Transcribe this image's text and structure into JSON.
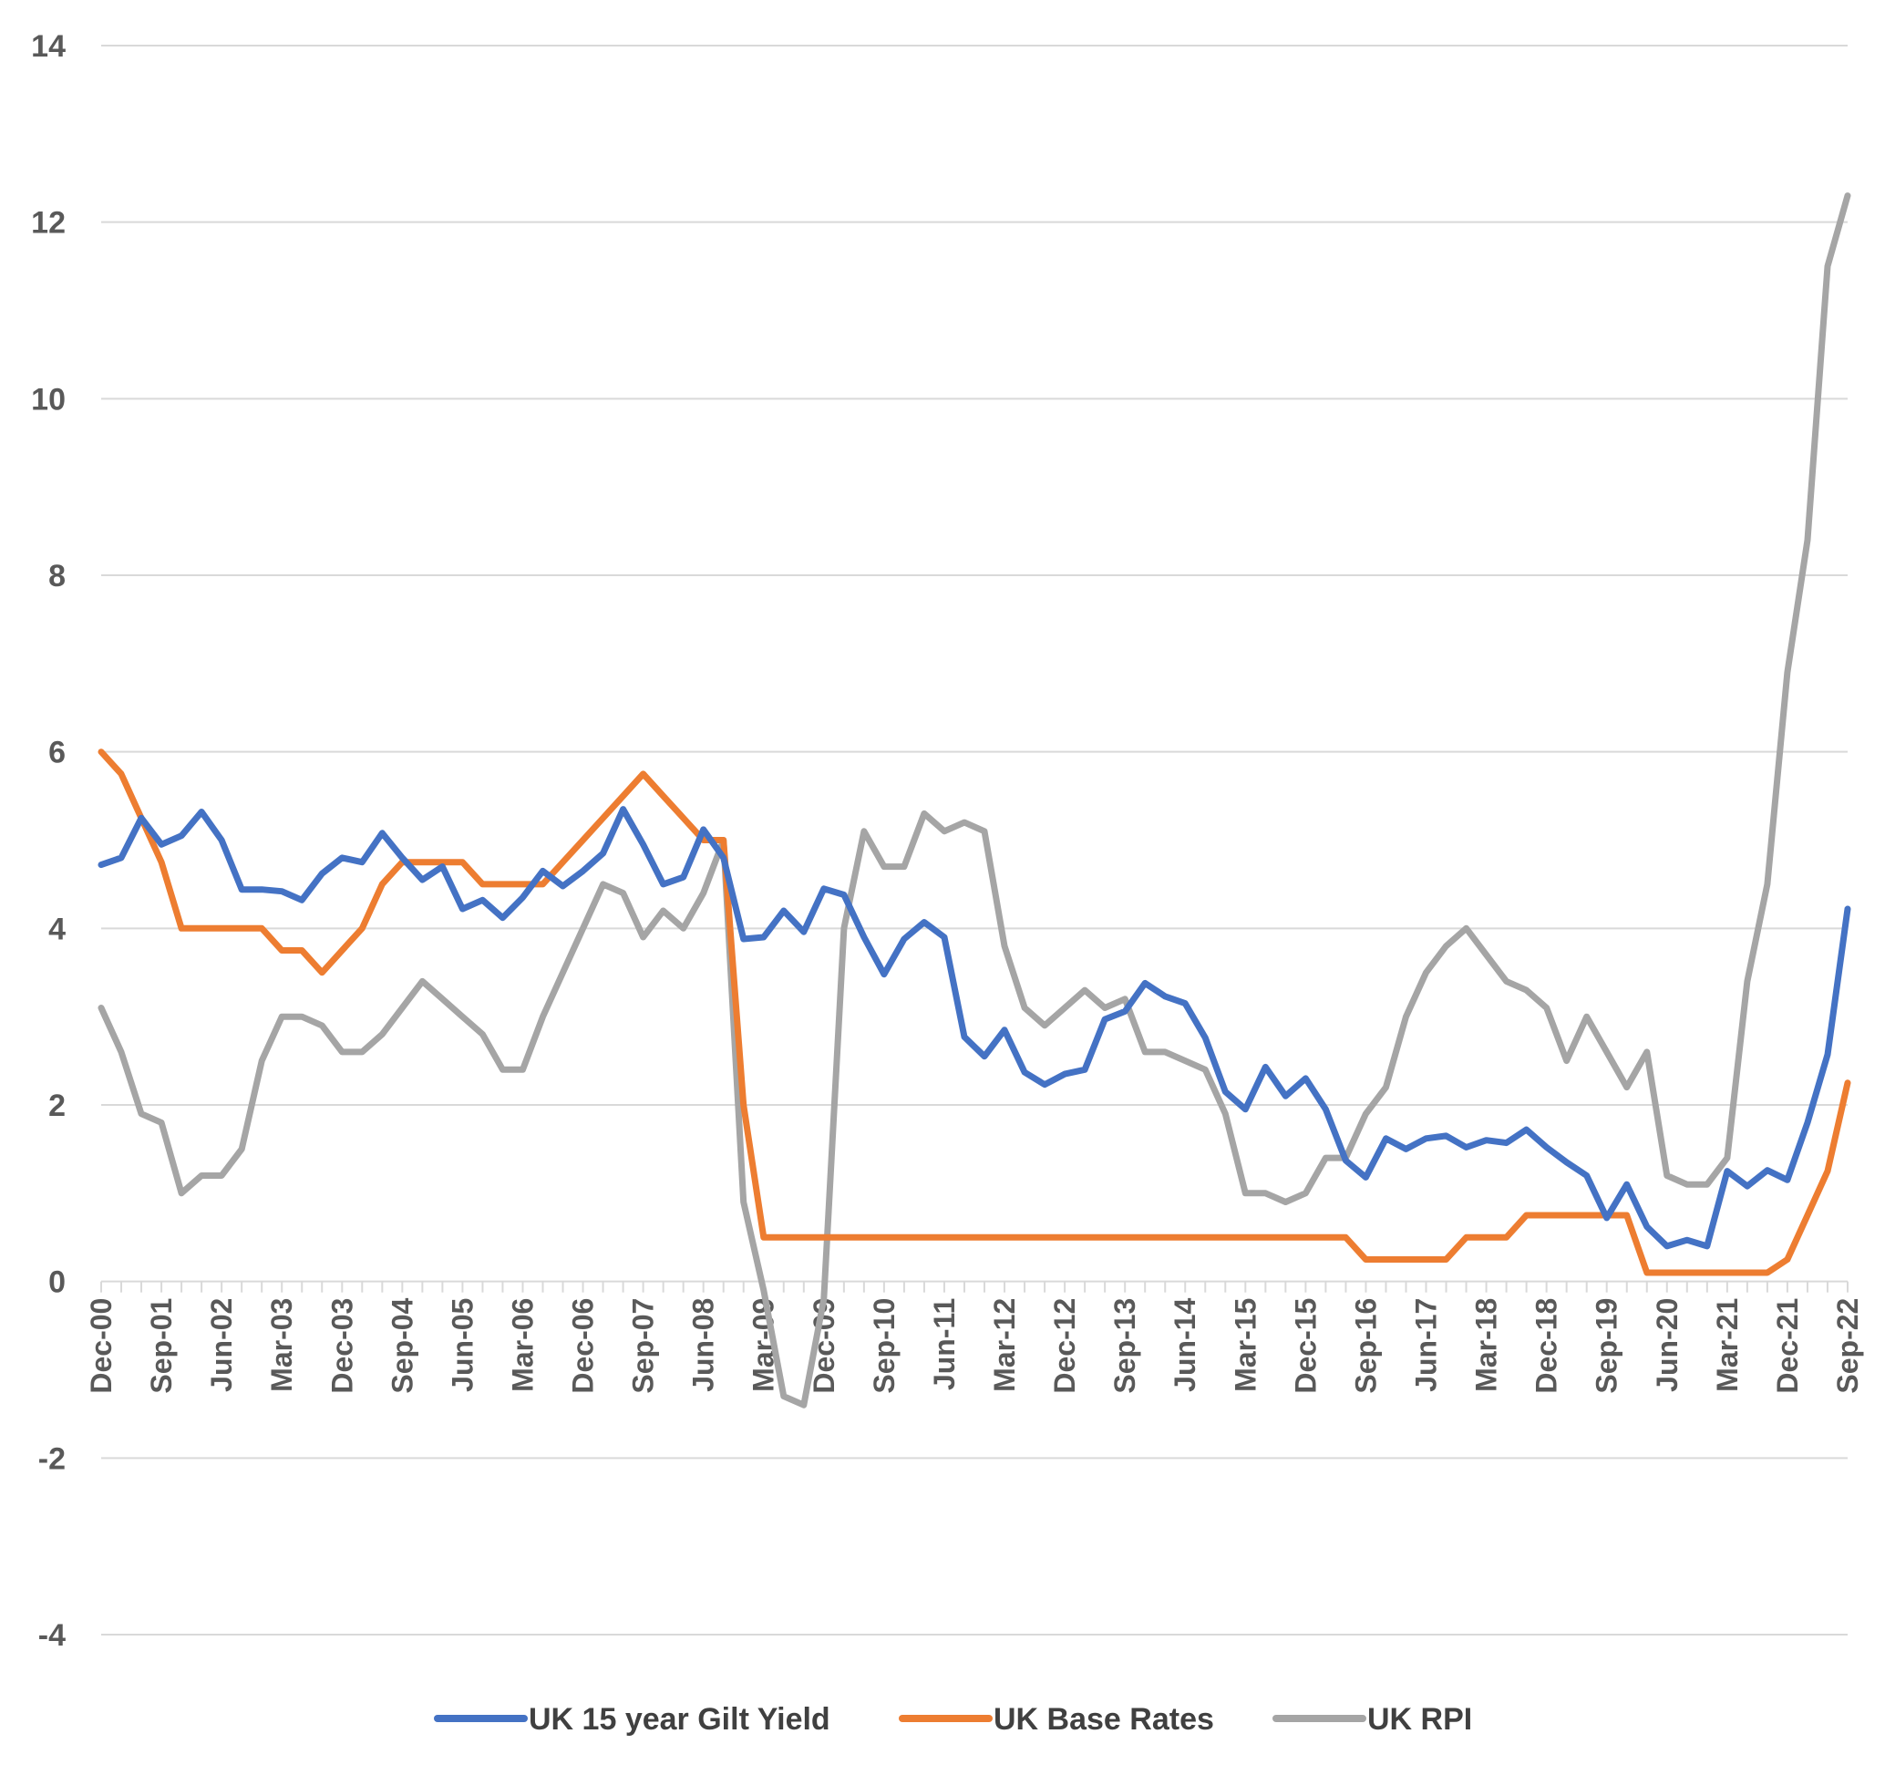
{
  "chart_data": {
    "type": "line",
    "title": "",
    "xlabel": "",
    "ylabel": "",
    "ylim": [
      -4,
      14
    ],
    "yticks": [
      -4,
      -2,
      0,
      2,
      4,
      6,
      8,
      10,
      12,
      14
    ],
    "grid": "horizontal",
    "legend_position": "bottom",
    "x_tick_labels": [
      "Dec-00",
      "Sep-01",
      "Jun-02",
      "Mar-03",
      "Dec-03",
      "Sep-04",
      "Jun-05",
      "Mar-06",
      "Dec-06",
      "Sep-07",
      "Jun-08",
      "Mar-09",
      "Dec-09",
      "Sep-10",
      "Jun-11",
      "Mar-12",
      "Dec-12",
      "Sep-13",
      "Jun-14",
      "Mar-15",
      "Dec-15",
      "Sep-16",
      "Jun-17",
      "Mar-18",
      "Dec-18",
      "Sep-19",
      "Jun-20",
      "Mar-21",
      "Dec-21",
      "Sep-22"
    ],
    "x_tick_step": 3,
    "x_points": [
      "Dec-00",
      "Mar-01",
      "Jun-01",
      "Sep-01",
      "Dec-01",
      "Mar-02",
      "Jun-02",
      "Sep-02",
      "Dec-02",
      "Mar-03",
      "Jun-03",
      "Sep-03",
      "Dec-03",
      "Mar-04",
      "Jun-04",
      "Sep-04",
      "Dec-04",
      "Mar-05",
      "Jun-05",
      "Sep-05",
      "Dec-05",
      "Mar-06",
      "Jun-06",
      "Sep-06",
      "Dec-06",
      "Mar-07",
      "Jun-07",
      "Sep-07",
      "Dec-07",
      "Mar-08",
      "Jun-08",
      "Sep-08",
      "Dec-08",
      "Mar-09",
      "Jun-09",
      "Sep-09",
      "Dec-09",
      "Mar-10",
      "Jun-10",
      "Sep-10",
      "Dec-10",
      "Mar-11",
      "Jun-11",
      "Sep-11",
      "Dec-11",
      "Mar-12",
      "Jun-12",
      "Sep-12",
      "Dec-12",
      "Mar-13",
      "Jun-13",
      "Sep-13",
      "Dec-13",
      "Mar-14",
      "Jun-14",
      "Sep-14",
      "Dec-14",
      "Mar-15",
      "Jun-15",
      "Sep-15",
      "Dec-15",
      "Mar-16",
      "Jun-16",
      "Sep-16",
      "Dec-16",
      "Mar-17",
      "Jun-17",
      "Sep-17",
      "Dec-17",
      "Mar-18",
      "Jun-18",
      "Sep-18",
      "Dec-18",
      "Mar-19",
      "Jun-19",
      "Sep-19",
      "Dec-19",
      "Mar-20",
      "Jun-20",
      "Sep-20",
      "Dec-20",
      "Mar-21",
      "Jun-21",
      "Sep-21",
      "Dec-21",
      "Mar-22",
      "Jun-22",
      "Sep-22"
    ],
    "series": [
      {
        "name": "UK 15 year Gilt Yield",
        "color": "#4472C4",
        "values": [
          4.72,
          4.8,
          5.25,
          4.95,
          5.05,
          5.32,
          5.0,
          4.44,
          4.44,
          4.42,
          4.32,
          4.62,
          4.8,
          4.75,
          5.08,
          4.8,
          4.55,
          4.7,
          4.22,
          4.32,
          4.12,
          4.35,
          4.65,
          4.48,
          4.65,
          4.85,
          5.35,
          4.95,
          4.5,
          4.58,
          5.12,
          4.8,
          3.88,
          3.9,
          4.2,
          3.96,
          4.45,
          4.38,
          3.9,
          3.48,
          3.88,
          4.07,
          3.9,
          2.77,
          2.55,
          2.85,
          2.37,
          2.23,
          2.35,
          2.4,
          2.97,
          3.06,
          3.38,
          3.23,
          3.15,
          2.76,
          2.15,
          1.95,
          2.43,
          2.1,
          2.3,
          1.95,
          1.37,
          1.18,
          1.62,
          1.5,
          1.62,
          1.65,
          1.52,
          1.6,
          1.57,
          1.72,
          1.52,
          1.35,
          1.2,
          0.72,
          1.1,
          0.62,
          0.4,
          0.47,
          0.4,
          1.25,
          1.08,
          1.26,
          1.15,
          1.8,
          2.57,
          4.22
        ]
      },
      {
        "name": "UK Base Rates",
        "color": "#ED7D31",
        "values": [
          6.0,
          5.75,
          5.25,
          4.75,
          4.0,
          4.0,
          4.0,
          4.0,
          4.0,
          3.75,
          3.75,
          3.5,
          3.75,
          4.0,
          4.5,
          4.75,
          4.75,
          4.75,
          4.75,
          4.5,
          4.5,
          4.5,
          4.5,
          4.75,
          5.0,
          5.25,
          5.5,
          5.75,
          5.5,
          5.25,
          5.0,
          5.0,
          2.0,
          0.5,
          0.5,
          0.5,
          0.5,
          0.5,
          0.5,
          0.5,
          0.5,
          0.5,
          0.5,
          0.5,
          0.5,
          0.5,
          0.5,
          0.5,
          0.5,
          0.5,
          0.5,
          0.5,
          0.5,
          0.5,
          0.5,
          0.5,
          0.5,
          0.5,
          0.5,
          0.5,
          0.5,
          0.5,
          0.5,
          0.25,
          0.25,
          0.25,
          0.25,
          0.25,
          0.5,
          0.5,
          0.5,
          0.75,
          0.75,
          0.75,
          0.75,
          0.75,
          0.75,
          0.1,
          0.1,
          0.1,
          0.1,
          0.1,
          0.1,
          0.1,
          0.25,
          0.75,
          1.25,
          2.25
        ]
      },
      {
        "name": "UK RPI",
        "color": "#A5A5A5",
        "values": [
          3.1,
          2.6,
          1.9,
          1.8,
          1.0,
          1.2,
          1.2,
          1.5,
          2.5,
          3.0,
          3.0,
          2.9,
          2.6,
          2.6,
          2.8,
          3.1,
          3.4,
          3.2,
          3.0,
          2.8,
          2.4,
          2.4,
          3.0,
          3.5,
          4.0,
          4.5,
          4.4,
          3.9,
          4.2,
          4.0,
          4.4,
          5.0,
          0.9,
          -0.1,
          -1.3,
          -1.4,
          -0.2,
          4.0,
          5.1,
          4.7,
          4.7,
          5.3,
          5.1,
          5.2,
          5.1,
          3.8,
          3.1,
          2.9,
          3.1,
          3.3,
          3.1,
          3.2,
          2.6,
          2.6,
          2.5,
          2.4,
          1.9,
          1.0,
          1.0,
          0.9,
          1.0,
          1.4,
          1.4,
          1.9,
          2.2,
          3.0,
          3.5,
          3.8,
          4.0,
          3.7,
          3.4,
          3.3,
          3.1,
          2.5,
          3.0,
          2.6,
          2.2,
          2.6,
          1.2,
          1.1,
          1.1,
          1.4,
          3.4,
          4.5,
          6.9,
          8.4,
          11.5,
          12.3
        ]
      }
    ]
  }
}
